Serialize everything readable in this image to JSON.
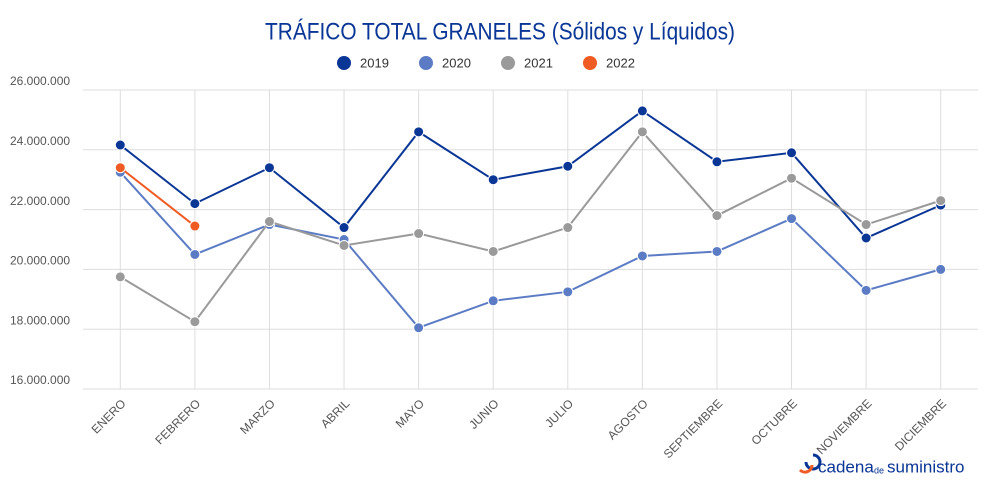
{
  "chart_data": {
    "type": "line",
    "title": "TRÁFICO TOTAL GRANELES (Sólidos y Líquidos)",
    "categories": [
      "ENERO",
      "FEBRERO",
      "MARZO",
      "ABRIL",
      "MAYO",
      "JUNIO",
      "JULIO",
      "AGOSTO",
      "SEPTIEMBRE",
      "OCTUBRE",
      "NOVIEMBRE",
      "DICIEMBRE"
    ],
    "series": [
      {
        "name": "2019",
        "color": "#0a3696",
        "values": [
          24160000,
          22200000,
          23400000,
          21400000,
          24600000,
          23000000,
          23450000,
          25300000,
          23600000,
          23900000,
          21050000,
          22150000
        ]
      },
      {
        "name": "2020",
        "color": "#5b7cc4",
        "values": [
          23250000,
          20500000,
          21500000,
          21000000,
          18050000,
          18950000,
          19250000,
          20450000,
          20600000,
          21700000,
          19300000,
          20000000
        ]
      },
      {
        "name": "2021",
        "color": "#9a9a9a",
        "values": [
          19750000,
          18250000,
          21600000,
          20800000,
          21200000,
          20600000,
          21400000,
          24600000,
          21800000,
          23050000,
          21500000,
          22300000
        ]
      },
      {
        "name": "2022",
        "color": "#f05a23",
        "values": [
          23400000,
          21450000,
          null,
          null,
          null,
          null,
          null,
          null,
          null,
          null,
          null,
          null
        ]
      }
    ],
    "ylim": [
      16000000,
      26000000
    ],
    "yticks": [
      {
        "value": 16000000,
        "label": "16.000.000"
      },
      {
        "value": 18000000,
        "label": "18.000.000"
      },
      {
        "value": 20000000,
        "label": "20.000.000"
      },
      {
        "value": 22000000,
        "label": "22.000.000"
      },
      {
        "value": 24000000,
        "label": "24.000.000"
      },
      {
        "value": 26000000,
        "label": "26.000.000"
      }
    ],
    "grid": true
  },
  "brand": {
    "name": "cadena",
    "joiner": "de",
    "tail": "suministro"
  }
}
